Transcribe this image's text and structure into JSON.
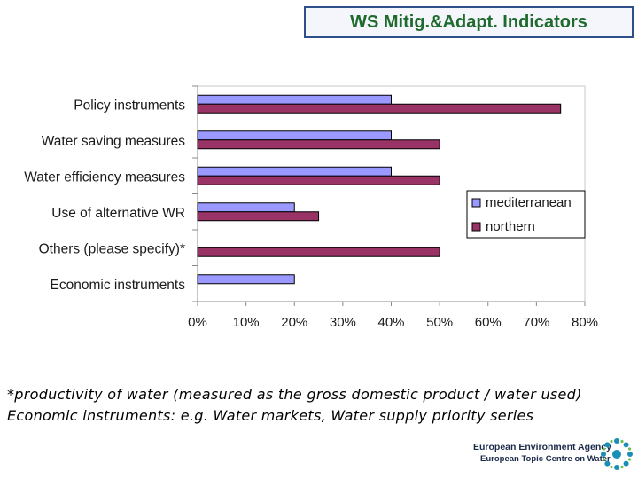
{
  "header": {
    "title": "WS Mitig.&Adapt. Indicators"
  },
  "chart_data": {
    "type": "bar",
    "orientation": "horizontal",
    "categories": [
      "Policy instruments",
      "Water saving measures",
      "Water efficiency measures",
      "Use of alternative WR",
      "Others (please specify)*",
      "Economic instruments"
    ],
    "series": [
      {
        "name": "mediterranean",
        "color": "#9999ff",
        "values": [
          40,
          40,
          40,
          20,
          0,
          20
        ]
      },
      {
        "name": "northern",
        "color": "#993366",
        "values": [
          75,
          50,
          50,
          25,
          50,
          0
        ]
      }
    ],
    "xlim": [
      0,
      80
    ],
    "xticks": [
      0,
      10,
      20,
      30,
      40,
      50,
      60,
      70,
      80
    ],
    "tick_labels": [
      "0%",
      "10%",
      "20%",
      "30%",
      "40%",
      "50%",
      "60%",
      "70%",
      "80%"
    ],
    "grid": false,
    "legend": "right"
  },
  "footnotes": {
    "line1": "*productivity of water (measured as the gross domestic product / water used)",
    "line2": "Economic instruments: e.g. Water markets, Water supply priority series"
  },
  "logo": {
    "line1": "European Environment Agency",
    "line2": "European Topic Centre on Water",
    "icon": "eea-star-icon"
  }
}
